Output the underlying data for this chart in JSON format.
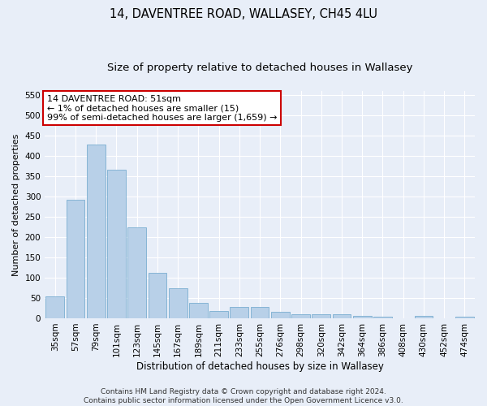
{
  "title": "14, DAVENTREE ROAD, WALLASEY, CH45 4LU",
  "subtitle": "Size of property relative to detached houses in Wallasey",
  "xlabel": "Distribution of detached houses by size in Wallasey",
  "ylabel": "Number of detached properties",
  "categories": [
    "35sqm",
    "57sqm",
    "79sqm",
    "101sqm",
    "123sqm",
    "145sqm",
    "167sqm",
    "189sqm",
    "211sqm",
    "233sqm",
    "255sqm",
    "276sqm",
    "298sqm",
    "320sqm",
    "342sqm",
    "364sqm",
    "386sqm",
    "408sqm",
    "430sqm",
    "452sqm",
    "474sqm"
  ],
  "values": [
    55,
    292,
    428,
    367,
    225,
    113,
    75,
    38,
    17,
    27,
    27,
    15,
    10,
    9,
    9,
    5,
    3,
    0,
    5,
    0,
    3
  ],
  "bar_color": "#b8d0e8",
  "bar_edge_color": "#7aaed0",
  "annotation_box_text": "14 DAVENTREE ROAD: 51sqm\n← 1% of detached houses are smaller (15)\n99% of semi-detached houses are larger (1,659) →",
  "annotation_box_color": "#ffffff",
  "annotation_box_edge_color": "#cc0000",
  "ylim": [
    0,
    560
  ],
  "yticks": [
    0,
    50,
    100,
    150,
    200,
    250,
    300,
    350,
    400,
    450,
    500,
    550
  ],
  "footer_line1": "Contains HM Land Registry data © Crown copyright and database right 2024.",
  "footer_line2": "Contains public sector information licensed under the Open Government Licence v3.0.",
  "background_color": "#e8eef8",
  "plot_background_color": "#e8eef8",
  "grid_color": "#ffffff",
  "title_fontsize": 10.5,
  "subtitle_fontsize": 9.5,
  "xlabel_fontsize": 8.5,
  "ylabel_fontsize": 8,
  "tick_fontsize": 7.5,
  "footer_fontsize": 6.5,
  "annotation_fontsize": 8
}
